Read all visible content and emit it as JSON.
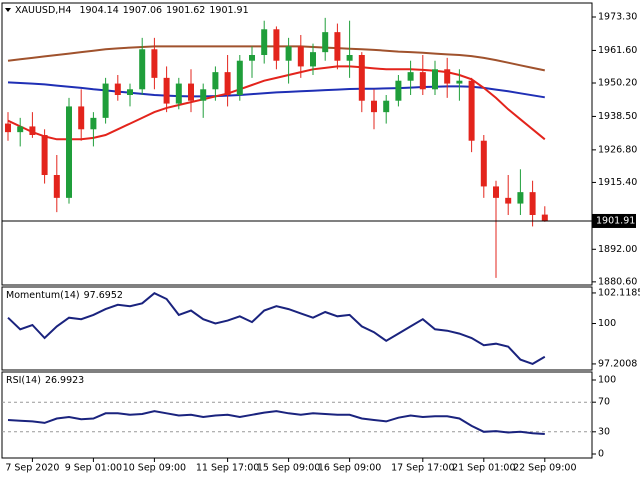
{
  "chart_data": [
    {
      "type": "candlestick",
      "title": "XAUUSD,H4",
      "categories": [
        null,
        null,
        "7 Sep 2020",
        null,
        null,
        null,
        null,
        "9 Sep 01:00",
        null,
        null,
        null,
        null,
        "10 Sep 09:00",
        null,
        null,
        null,
        null,
        null,
        "11 Sep 17:00",
        null,
        null,
        null,
        null,
        "15 Sep 09:00",
        null,
        null,
        null,
        null,
        "16 Sep 09:00",
        null,
        null,
        null,
        null,
        null,
        "17 Sep 17:00",
        null,
        null,
        null,
        null,
        "21 Sep 01:00",
        null,
        null,
        null,
        null,
        "22 Sep 09:00"
      ],
      "open": [
        1936,
        1933,
        1935,
        1932,
        1918,
        1910,
        1942,
        1934,
        1938,
        1950,
        1946,
        1948,
        1962,
        1952,
        1943,
        1950,
        1944,
        1948,
        1954,
        1946,
        1958,
        1960,
        1969,
        1958,
        1963,
        1956,
        1961,
        1968,
        1958,
        1960,
        1944,
        1940,
        1944,
        1951,
        1954,
        1948,
        1955,
        1950,
        1951,
        1930,
        1914,
        1910,
        1908,
        1912,
        1904.14
      ],
      "high": [
        1940,
        1938,
        1940,
        1934,
        1925,
        1945,
        1948,
        1940,
        1952,
        1953,
        1950,
        1966,
        1966,
        1956,
        1952,
        1955,
        1950,
        1956,
        1960,
        1960,
        1963,
        1972,
        1970,
        1966,
        1967,
        1964,
        1973,
        1971,
        1972,
        1961,
        1948,
        1946,
        1953,
        1958,
        1960,
        1958,
        1959,
        1955,
        1952,
        1932,
        1916,
        1918,
        1920,
        1916,
        1907.06
      ],
      "low": [
        1930,
        1928,
        1931,
        1915,
        1905,
        1908,
        1930,
        1928,
        1936,
        1944,
        1942,
        1946,
        1948,
        1940,
        1941,
        1940,
        1938,
        1944,
        1942,
        1944,
        1952,
        1957,
        1955,
        1950,
        1952,
        1953,
        1958,
        1955,
        1952,
        1940,
        1934,
        1936,
        1942,
        1946,
        1946,
        1946,
        1945,
        1944,
        1926,
        1910,
        1882,
        1904,
        1904,
        1900,
        1901.62
      ],
      "close": [
        1933,
        1935,
        1932,
        1918,
        1910,
        1942,
        1934,
        1938,
        1950,
        1946,
        1948,
        1962,
        1952,
        1943,
        1950,
        1944,
        1948,
        1954,
        1946,
        1958,
        1960,
        1969,
        1958,
        1963,
        1956,
        1961,
        1968,
        1958,
        1960,
        1944,
        1940,
        1944,
        1951,
        1954,
        1948,
        1955,
        1950,
        1951,
        1930,
        1914,
        1910,
        1908,
        1912,
        1904,
        1901.91
      ],
      "up_color": "#1f9e3a",
      "down_color": "#e3241c",
      "overlays": [
        {
          "color": "#a0522d",
          "values": [
            1958,
            1958.5,
            1959,
            1959.5,
            1960,
            1960.5,
            1961,
            1961.5,
            1962,
            1962.3,
            1962.6,
            1962.8,
            1963,
            1963,
            1963,
            1963,
            1963,
            1963,
            1963,
            1963,
            1963,
            1963,
            1963,
            1963,
            1963,
            1962.8,
            1962.6,
            1962.4,
            1962.2,
            1962,
            1961.8,
            1961.5,
            1961.2,
            1961,
            1960.8,
            1960.5,
            1960.2,
            1960,
            1959.6,
            1959,
            1958.2,
            1957.3,
            1956.4,
            1955.5,
            1954.6
          ]
        },
        {
          "color": "#1f2fb5",
          "values": [
            1950.4,
            1950.2,
            1950,
            1949.7,
            1949.3,
            1948.9,
            1948.5,
            1948,
            1947.6,
            1947.2,
            1946.8,
            1946.4,
            1946,
            1945.8,
            1945.6,
            1945.5,
            1945.5,
            1945.6,
            1945.8,
            1946,
            1946.3,
            1946.6,
            1946.9,
            1947.1,
            1947.3,
            1947.5,
            1947.7,
            1947.9,
            1948.1,
            1948.2,
            1948.2,
            1948.3,
            1948.4,
            1948.6,
            1948.8,
            1948.9,
            1949,
            1949,
            1948.9,
            1948.5,
            1947.9,
            1947.3,
            1946.6,
            1945.9,
            1945.2
          ]
        },
        {
          "color": "#e3241c",
          "values": [
            1937,
            1935,
            1933,
            1931.5,
            1930.5,
            1930.5,
            1930.5,
            1931,
            1932,
            1934,
            1936,
            1938,
            1940,
            1941.5,
            1942.5,
            1943.5,
            1944.5,
            1945.5,
            1946.5,
            1948,
            1949.5,
            1951,
            1952,
            1953,
            1954,
            1955,
            1955.5,
            1956,
            1956,
            1955.7,
            1955.3,
            1955,
            1955,
            1955,
            1954.8,
            1954.5,
            1954,
            1953,
            1951.5,
            1948.5,
            1945,
            1941,
            1937.5,
            1934,
            1930.5
          ]
        }
      ],
      "ylim": [
        1879.5,
        1978.2
      ],
      "yticks": [
        {
          "value": 1973.3,
          "label": "1973.30"
        },
        {
          "value": 1961.6,
          "label": "1961.60"
        },
        {
          "value": 1950.2,
          "label": "1950.20"
        },
        {
          "value": 1938.5,
          "label": "1938.50"
        },
        {
          "value": 1926.8,
          "label": "1926.80"
        },
        {
          "value": 1915.4,
          "label": "1915.40"
        },
        {
          "value": 1892,
          "label": "1892.00"
        },
        {
          "value": 1880.6,
          "label": "1880.60"
        }
      ]
    },
    {
      "type": "line",
      "title": "Momentum(14)",
      "color": "#1a237e",
      "values": [
        100.4,
        99.6,
        99.9,
        99.0,
        99.8,
        100.4,
        100.3,
        100.6,
        101.0,
        101.3,
        101.2,
        101.4,
        102.1,
        101.7,
        100.6,
        100.9,
        100.3,
        100.0,
        100.2,
        100.5,
        100.1,
        100.9,
        101.2,
        101.0,
        100.7,
        100.4,
        100.8,
        100.5,
        100.6,
        99.8,
        99.4,
        98.8,
        99.3,
        99.8,
        100.3,
        99.6,
        99.5,
        99.3,
        99.0,
        98.5,
        98.6,
        98.4,
        97.5,
        97.2,
        97.6952
      ],
      "ylim": [
        96.78,
        102.53
      ],
      "yticks": [
        102.1185,
        100,
        97.2008
      ]
    },
    {
      "type": "line",
      "title": "RSI(14)",
      "color": "#1a237e",
      "values": [
        46,
        45,
        44,
        42,
        48,
        50,
        47,
        48,
        55,
        55,
        53,
        54,
        58,
        55,
        52,
        53,
        50,
        52,
        53,
        50,
        53,
        56,
        58,
        55,
        53,
        55,
        54,
        53,
        53,
        48,
        46,
        44,
        49,
        52,
        50,
        51,
        51,
        48,
        38,
        30,
        31,
        29,
        30,
        28,
        26.9923
      ],
      "ylim": [
        -5.4,
        110.8
      ],
      "yticks": [
        100,
        70,
        30,
        0
      ],
      "levels": [
        70,
        30
      ]
    }
  ]
}
